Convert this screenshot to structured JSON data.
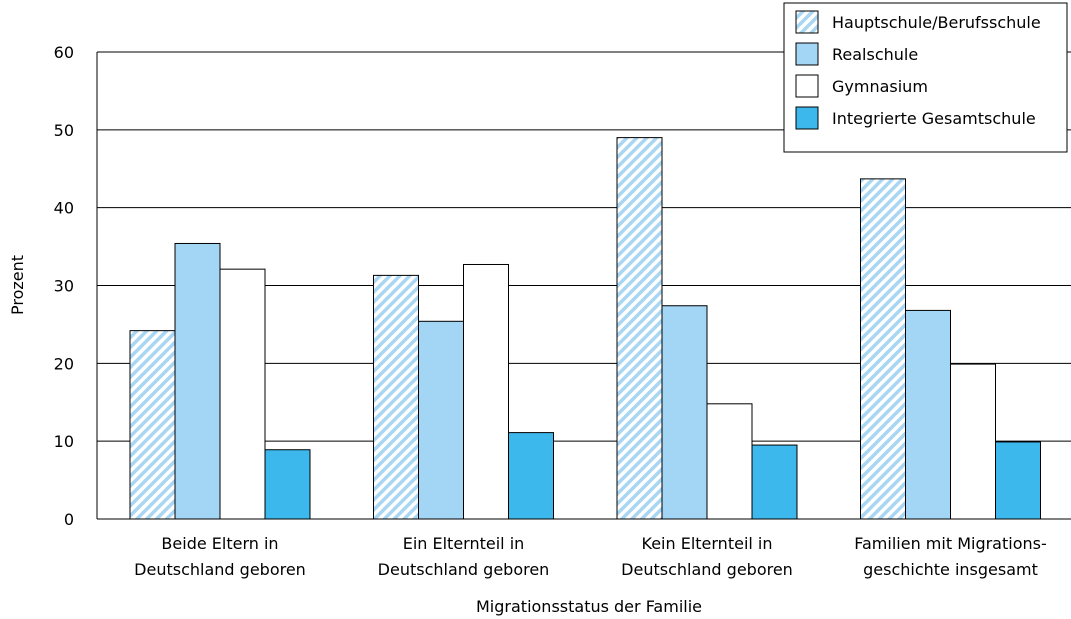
{
  "chart_data": {
    "type": "bar",
    "xlabel": "Migrationsstatus der Familie",
    "ylabel": "Prozent",
    "ylim": [
      0,
      60
    ],
    "yticks": [
      0,
      10,
      20,
      30,
      40,
      50,
      60
    ],
    "grid": true,
    "legend_position": "top-right",
    "categories": [
      [
        "Beide Eltern in",
        "Deutschland geboren"
      ],
      [
        "Ein Elternteil in",
        "Deutschland geboren"
      ],
      [
        "Kein Elternteil in",
        "Deutschland geboren"
      ],
      [
        "Familien mit Migrations-",
        "geschichte insgesamt"
      ]
    ],
    "series": [
      {
        "name": "Hauptschule/Berufsschule",
        "values": [
          24.2,
          31.3,
          49.0,
          43.7
        ],
        "fill": "#a9d6f2",
        "pattern": "diagonal-hatch"
      },
      {
        "name": "Realschule",
        "values": [
          35.4,
          25.4,
          27.4,
          26.8
        ],
        "fill": "#a3d5f5",
        "pattern": "solid"
      },
      {
        "name": "Gymnasium",
        "values": [
          32.1,
          32.7,
          14.8,
          19.9
        ],
        "fill": "#ffffff",
        "pattern": "solid"
      },
      {
        "name": "Integrierte Gesamtschule",
        "values": [
          8.9,
          11.1,
          9.5,
          9.9
        ],
        "fill": "#3db8ec",
        "pattern": "solid"
      }
    ]
  }
}
